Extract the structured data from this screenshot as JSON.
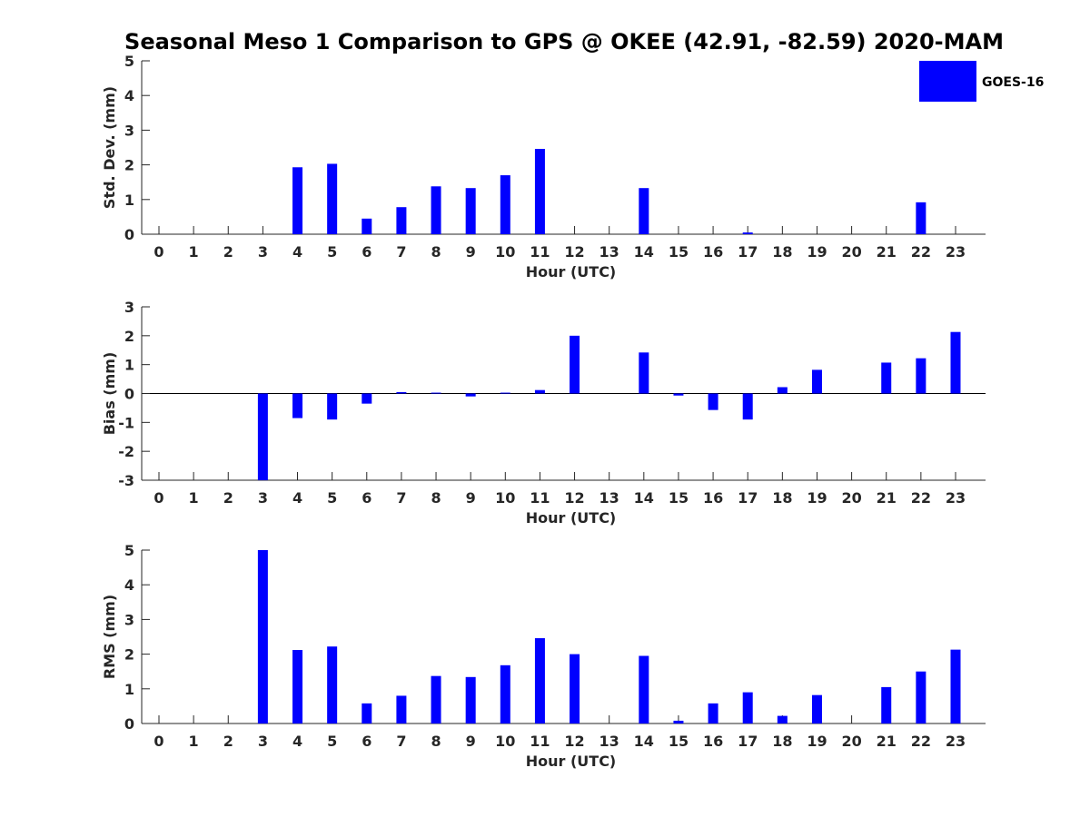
{
  "chart_data": {
    "title": "Seasonal Meso 1 Comparison to GPS @ OKEE (42.91, -82.59) 2020-MAM",
    "legend": {
      "label": "GOES-16",
      "color": "#0000ff",
      "placement": "top-right"
    },
    "panels": [
      {
        "type": "bar",
        "ylabel": "Std. Dev. (mm)",
        "xlabel": "Hour (UTC)",
        "ylim": [
          0,
          5
        ],
        "yticks": [
          "0",
          "1",
          "2",
          "3",
          "4",
          "5"
        ],
        "categories": [
          "0",
          "1",
          "2",
          "3",
          "4",
          "5",
          "6",
          "7",
          "8",
          "9",
          "10",
          "11",
          "12",
          "13",
          "14",
          "15",
          "16",
          "17",
          "18",
          "19",
          "20",
          "21",
          "22",
          "23"
        ],
        "values": [
          0,
          0,
          0,
          0,
          1.93,
          2.03,
          0.45,
          0.78,
          1.38,
          1.33,
          1.7,
          2.46,
          0,
          0,
          1.33,
          0,
          0,
          0.05,
          0,
          0,
          0,
          0,
          0.92,
          0
        ]
      },
      {
        "type": "bar",
        "ylabel": "Bias (mm)",
        "xlabel": "Hour (UTC)",
        "ylim": [
          -3,
          3
        ],
        "yticks": [
          "-3",
          "-2",
          "-1",
          "0",
          "1",
          "2",
          "3"
        ],
        "categories": [
          "0",
          "1",
          "2",
          "3",
          "4",
          "5",
          "6",
          "7",
          "8",
          "9",
          "10",
          "11",
          "12",
          "13",
          "14",
          "15",
          "16",
          "17",
          "18",
          "19",
          "20",
          "21",
          "22",
          "23"
        ],
        "values": [
          0,
          0,
          0,
          -3.0,
          -0.85,
          -0.9,
          -0.35,
          0.05,
          0.03,
          -0.1,
          0.03,
          0.12,
          2.0,
          0,
          1.42,
          -0.07,
          -0.57,
          -0.9,
          0.22,
          0.82,
          0,
          1.07,
          1.22,
          2.13
        ]
      },
      {
        "type": "bar",
        "ylabel": "RMS (mm)",
        "xlabel": "Hour (UTC)",
        "ylim": [
          0,
          5
        ],
        "yticks": [
          "0",
          "1",
          "2",
          "3",
          "4",
          "5"
        ],
        "categories": [
          "0",
          "1",
          "2",
          "3",
          "4",
          "5",
          "6",
          "7",
          "8",
          "9",
          "10",
          "11",
          "12",
          "13",
          "14",
          "15",
          "16",
          "17",
          "18",
          "19",
          "20",
          "21",
          "22",
          "23"
        ],
        "values": [
          0,
          0,
          0,
          5.0,
          2.12,
          2.22,
          0.58,
          0.8,
          1.37,
          1.34,
          1.68,
          2.46,
          2.0,
          0,
          1.95,
          0.08,
          0.58,
          0.9,
          0.22,
          0.82,
          0,
          1.05,
          1.5,
          2.13
        ]
      }
    ]
  }
}
